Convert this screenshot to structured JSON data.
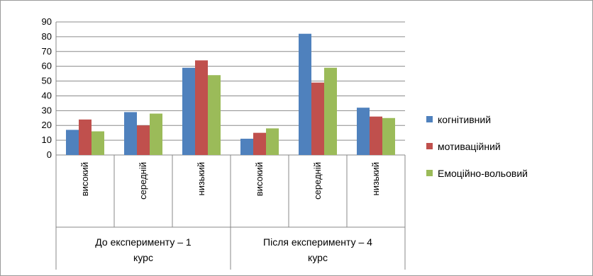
{
  "chart_data": {
    "type": "bar",
    "groups": [
      {
        "label_lines": [
          "До експерименту – 1",
          "курс"
        ],
        "categories": [
          "високий",
          "середній",
          "низький"
        ]
      },
      {
        "label_lines": [
          "Після експерименту – 4",
          "курс"
        ],
        "categories": [
          "високий",
          "середній",
          "низький"
        ]
      }
    ],
    "categories": [
      "високий",
      "середній",
      "низький",
      "високий",
      "середній",
      "низький"
    ],
    "series": [
      {
        "name": "когнітивний",
        "color": "#4F81BD",
        "values": [
          17,
          29,
          59,
          11,
          82,
          32
        ]
      },
      {
        "name": "мотиваційний",
        "color": "#C0504D",
        "values": [
          24,
          20,
          64,
          15,
          49,
          26
        ]
      },
      {
        "name": "Емоційно-вольовий",
        "color": "#9BBB59",
        "values": [
          16,
          28,
          54,
          18,
          59,
          25
        ]
      }
    ],
    "ylim": [
      0,
      90
    ],
    "yticks": [
      0,
      10,
      20,
      30,
      40,
      50,
      60,
      70,
      80,
      90
    ],
    "grid": true,
    "legend_position": "right"
  }
}
